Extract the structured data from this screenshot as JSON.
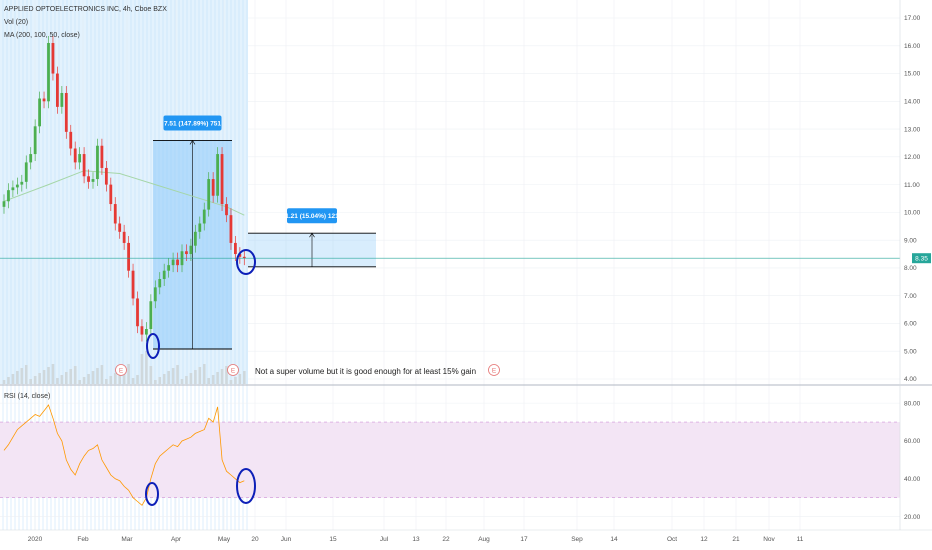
{
  "colors": {
    "background": "#ffffff",
    "grid": "#eef0f4",
    "highlight": "#e3f2fd",
    "highlight_stripe": "#bbdefb",
    "candle_up": "#4caf50",
    "candle_down": "#e53935",
    "moving_average": "#a5d6a7",
    "price_line": "#26a69a",
    "measure_fill": "#90caf9",
    "measure_label": "#2196f3",
    "rsi_line": "#ff9800",
    "rsi_band": "#f3e5f5",
    "rsi_band_border": "#ce93d8",
    "circle": "#0d1fb8",
    "earnings_marker": "#e57373"
  },
  "legend": {
    "title": "APPLIED OPTOELECTRONICS INC, 4h, Cboe BZX",
    "volume": "Vol (20)",
    "moving_averages": "MA (200, 100, 50, close)",
    "rsi": "RSI (14, close)"
  },
  "annotations": {
    "measure_large": "7.51 (147.89%) 751",
    "measure_small": "1.21 (15.04%) 121",
    "note": "Not a super volume but it is good enough for at least 15% gain",
    "earnings_marker": "E"
  },
  "chart_data": [
    {
      "type": "candlestick",
      "title": "APPLIED OPTOELECTRONICS INC, 4h, Cboe BZX",
      "x_tick_labels": [
        "2020",
        "Feb",
        "Mar",
        "Apr",
        "May",
        "20",
        "Jun",
        "15",
        "Jul",
        "13",
        "22",
        "Aug",
        "17",
        "Sep",
        "14",
        "Oct",
        "12",
        "21",
        "Nov",
        "11"
      ],
      "y_tick_labels": [
        "17.00",
        "16.00",
        "15.00",
        "14.00",
        "13.00",
        "12.00",
        "11.00",
        "10.00",
        "9.00",
        "8.00",
        "7.00",
        "6.00",
        "5.00",
        "4.00"
      ],
      "ylim": [
        4,
        17.5
      ],
      "last_price": "8.35",
      "last_price_value": 8.35,
      "x_index_range": [
        0,
        61
      ],
      "close_by_index": [
        10.4,
        10.8,
        10.9,
        11.0,
        11.1,
        11.8,
        12.1,
        13.1,
        14.1,
        14.0,
        16.1,
        15.0,
        13.8,
        14.3,
        12.9,
        12.3,
        11.8,
        12.1,
        11.3,
        11.1,
        11.2,
        12.4,
        11.6,
        11.0,
        10.3,
        9.6,
        9.3,
        8.9,
        7.9,
        6.9,
        5.9,
        5.6,
        5.8,
        6.8,
        7.3,
        7.6,
        7.9,
        8.1,
        8.3,
        8.1,
        8.6,
        8.5,
        8.8,
        9.3,
        9.6,
        10.1,
        11.2,
        10.6,
        12.1,
        10.3,
        9.9,
        8.9,
        8.5,
        8.4,
        8.35
      ],
      "moving_average": {
        "x_index": [
          0,
          10,
          18,
          26,
          34,
          42,
          50,
          54
        ],
        "values": [
          10.4,
          11.0,
          11.5,
          11.4,
          11.0,
          10.6,
          10.2,
          9.9
        ]
      },
      "measurements": [
        {
          "label": "7.51 (147.89%) 751",
          "x_index": [
            32,
            49
          ],
          "from": 5.08,
          "to": 12.59
        },
        {
          "label": "1.21 (15.04%) 121",
          "x_index": [
            55,
            79
          ],
          "from": 8.04,
          "to": 9.25
        }
      ],
      "circled_points": [
        {
          "x_index": 32.5,
          "value": 5.2
        },
        {
          "x_index": 54.5,
          "value": 8.2
        }
      ]
    },
    {
      "type": "line",
      "title": "RSI (14, close)",
      "y_tick_labels": [
        "80.00",
        "60.00",
        "40.00",
        "20.00"
      ],
      "ylim": [
        14,
        88
      ],
      "band": [
        30,
        70
      ],
      "series": [
        {
          "values": [
            55,
            58,
            62,
            66,
            68,
            70,
            72,
            74,
            73,
            76,
            79,
            72,
            64,
            60,
            50,
            45,
            42,
            48,
            52,
            55,
            56,
            58,
            50,
            46,
            42,
            40,
            39,
            36,
            34,
            30,
            28,
            26,
            30,
            40,
            48,
            52,
            54,
            56,
            58,
            57,
            60,
            61,
            62,
            64,
            65,
            66,
            72,
            70,
            78,
            50,
            44,
            42,
            40,
            38,
            39
          ]
        }
      ],
      "circled_points": [
        {
          "x_index": 33,
          "value": 32
        },
        {
          "x_index": 55,
          "value": 38
        }
      ]
    }
  ]
}
